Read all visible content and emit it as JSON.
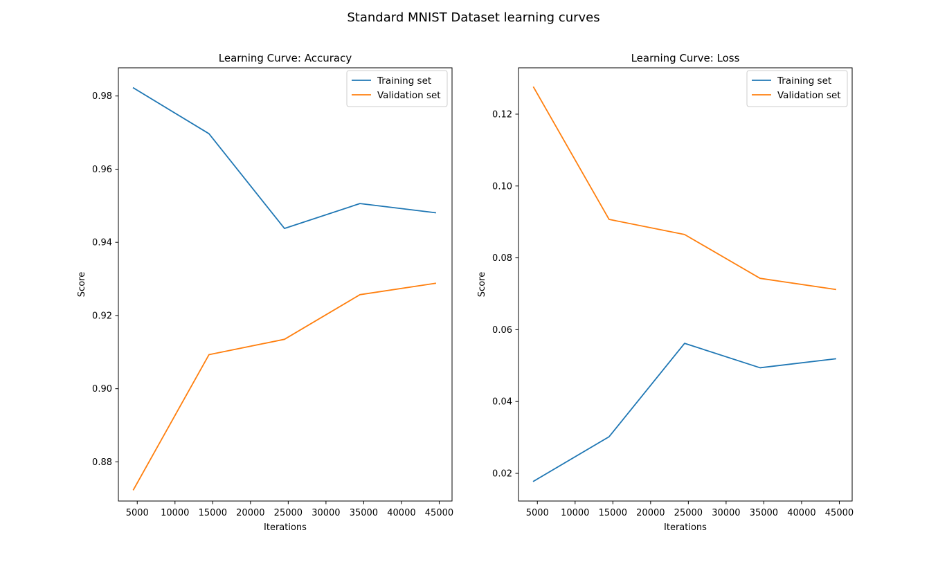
{
  "figure": {
    "suptitle": "Standard MNIST Dataset learning curves"
  },
  "colors": {
    "training": "#1f77b4",
    "validation": "#ff7f0e"
  },
  "chart_data": [
    {
      "type": "line",
      "title": "Learning Curve: Accuracy",
      "xlabel": "Iterations",
      "ylabel": "Score",
      "x": [
        4500,
        14500,
        24500,
        34500,
        44500
      ],
      "xlim": [
        2500,
        46700
      ],
      "ylim": [
        0.8693,
        0.9877
      ],
      "xticks": [
        5000,
        10000,
        15000,
        20000,
        25000,
        30000,
        35000,
        40000,
        45000
      ],
      "xtick_labels": [
        "5000",
        "10000",
        "15000",
        "20000",
        "25000",
        "30000",
        "35000",
        "40000",
        "45000"
      ],
      "yticks": [
        0.88,
        0.9,
        0.92,
        0.94,
        0.96,
        0.98
      ],
      "ytick_labels": [
        "0.88",
        "0.90",
        "0.92",
        "0.94",
        "0.96",
        "0.98"
      ],
      "legend_position": "top-right",
      "series": [
        {
          "name": "Training set",
          "values": [
            0.9822,
            0.9697,
            0.9438,
            0.9506,
            0.9481
          ]
        },
        {
          "name": "Validation set",
          "values": [
            0.8724,
            0.9093,
            0.9135,
            0.9257,
            0.9288
          ]
        }
      ]
    },
    {
      "type": "line",
      "title": "Learning Curve: Loss",
      "xlabel": "Iterations",
      "ylabel": "Score",
      "x": [
        4500,
        14500,
        24500,
        34500,
        44500
      ],
      "xlim": [
        2500,
        46700
      ],
      "ylim": [
        0.0123,
        0.1329
      ],
      "xticks": [
        5000,
        10000,
        15000,
        20000,
        25000,
        30000,
        35000,
        40000,
        45000
      ],
      "xtick_labels": [
        "5000",
        "10000",
        "15000",
        "20000",
        "25000",
        "30000",
        "35000",
        "40000",
        "45000"
      ],
      "yticks": [
        0.02,
        0.04,
        0.06,
        0.08,
        0.1,
        0.12
      ],
      "ytick_labels": [
        "0.02",
        "0.04",
        "0.06",
        "0.08",
        "0.10",
        "0.12"
      ],
      "legend_position": "top-right",
      "series": [
        {
          "name": "Training set",
          "values": [
            0.0178,
            0.0302,
            0.0562,
            0.0494,
            0.0519
          ]
        },
        {
          "name": "Validation set",
          "values": [
            0.1275,
            0.0907,
            0.0865,
            0.0743,
            0.0712
          ]
        }
      ]
    }
  ]
}
